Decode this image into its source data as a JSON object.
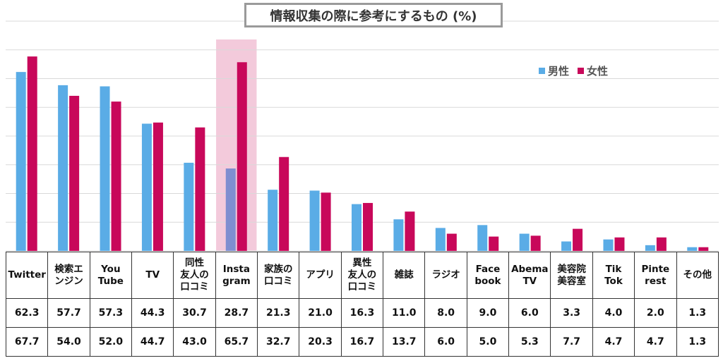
{
  "chart_data": {
    "type": "bar",
    "title": "情報収集の際に参考にするもの (%)",
    "categories": [
      [
        "Twitter"
      ],
      [
        "検索エ",
        "ンジン"
      ],
      [
        "You",
        "Tube"
      ],
      [
        "TV"
      ],
      [
        "同性",
        "友人の",
        "口コミ"
      ],
      [
        "Insta",
        "gram"
      ],
      [
        "家族の",
        "口コミ"
      ],
      [
        "アプリ"
      ],
      [
        "異性",
        "友人の",
        "口コミ"
      ],
      [
        "雑誌"
      ],
      [
        "ラジオ"
      ],
      [
        "Face",
        "book"
      ],
      [
        "Abema",
        "TV"
      ],
      [
        "美容院",
        "美容室"
      ],
      [
        "Tik",
        "Tok"
      ],
      [
        "Pinte",
        "rest"
      ],
      [
        "その他"
      ]
    ],
    "series": [
      {
        "name": "男性",
        "color": "#5aace6",
        "values": [
          62.3,
          57.7,
          57.3,
          44.3,
          30.7,
          28.7,
          21.3,
          21.0,
          16.3,
          11.0,
          8.0,
          9.0,
          6.0,
          3.3,
          4.0,
          2.0,
          1.3
        ],
        "labels": [
          "62.3",
          "57.7",
          "57.3",
          "44.3",
          "30.7",
          "28.7",
          "21.3",
          "21.0",
          "16.3",
          "11.0",
          "8.0",
          "9.0",
          "6.0",
          "3.3",
          "4.0",
          "2.0",
          "1.3"
        ]
      },
      {
        "name": "女性",
        "color": "#c8085a",
        "values": [
          67.7,
          54.0,
          52.0,
          44.7,
          43.0,
          65.7,
          32.7,
          20.3,
          16.7,
          13.7,
          6.0,
          5.0,
          5.3,
          7.7,
          4.7,
          4.7,
          1.3
        ],
        "labels": [
          "67.7",
          "54.0",
          "52.0",
          "44.7",
          "43.0",
          "65.7",
          "32.7",
          "20.3",
          "16.7",
          "13.7",
          "6.0",
          "5.0",
          "5.3",
          "7.7",
          "4.7",
          "4.7",
          "1.3"
        ]
      }
    ],
    "highlight_category_index": 5,
    "highlight_color": "#f3cadb",
    "highlight_male_bar_color": "#7f8ed0",
    "ylim": [
      0,
      80
    ],
    "grid": true,
    "legend_position": "top-right"
  }
}
